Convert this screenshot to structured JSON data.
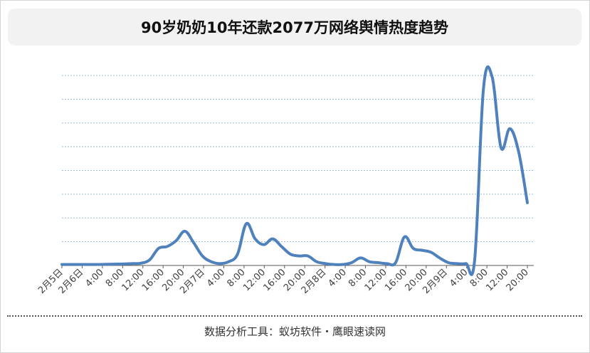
{
  "title": "90岁奶奶10年还款2077万网络舆情热度趋势",
  "footer": "数据分析工具：蚁坊软件・鹰眼速读网",
  "colors": {
    "line": "#4f81bd",
    "grid": "#9dbbd9",
    "axis": "#595959",
    "title_bg": "#f2f2f2"
  },
  "chart_data": {
    "type": "line",
    "title": "90岁奶奶10年还款2077万网络舆情热度趋势",
    "xlabel": "",
    "ylabel": "",
    "ylim": [
      0,
      100
    ],
    "grid": true,
    "legend": "none",
    "y_tick_labels_shown": false,
    "x_tick_labels": [
      "2月5日",
      "2月6日",
      "4:00",
      "8:00",
      "12:00",
      "16:00",
      "20:00",
      "2月7日",
      "4:00",
      "8:00",
      "12:00",
      "16:00",
      "20:00",
      "2月8日",
      "4:00",
      "8:00",
      "12:00",
      "16:00",
      "20:00",
      "2月9日",
      "4:00",
      "8:00",
      "12:00",
      "20:00"
    ],
    "series": [
      {
        "values": [
          0.5,
          0.5,
          0.5,
          0.5,
          0.5,
          0.6,
          0.7,
          0.8,
          1.0,
          1.2,
          3,
          9,
          10,
          13,
          18,
          12,
          5,
          2,
          1,
          2,
          6,
          22,
          14,
          11,
          14,
          10,
          6,
          5,
          5,
          2,
          1,
          0.5,
          0.5,
          1.5,
          4,
          2,
          1.5,
          1,
          1.5,
          15,
          9,
          8,
          7,
          4,
          1.5,
          1,
          1,
          3,
          93,
          99,
          62,
          72,
          60,
          33
        ]
      }
    ]
  }
}
